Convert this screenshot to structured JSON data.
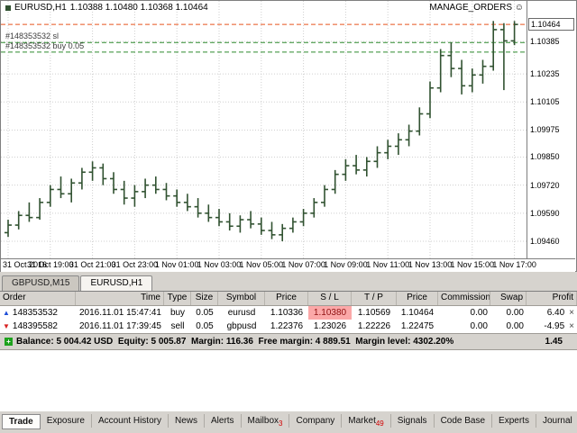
{
  "chart": {
    "title": "EURUSD,H1",
    "ohlc": "1.10388 1.10480 1.10368 1.10464",
    "ea_name": "MANAGE_ORDERS",
    "ea_icon": "☺",
    "annotations": [
      {
        "text": "#148353532 sl",
        "price": 1.1038
      },
      {
        "text": "#148353532 buy 0.05",
        "price": 1.10336
      }
    ]
  },
  "chart_data": {
    "type": "ohlc-bar",
    "symbol": "EURUSD",
    "timeframe": "H1",
    "title": "EURUSD,H1 1.10388 1.10480 1.10368 1.10464",
    "grid": true,
    "bar_color": "#315231",
    "grid_color": "#cfcfcf",
    "current_price": "1.10464",
    "price_view_top": 1.10573,
    "price_view_bottom": 1.09381,
    "y_axis_labels": [
      "1.10385",
      "1.10235",
      "1.10105",
      "1.09975",
      "1.09850",
      "1.09720",
      "1.09590",
      "1.09460"
    ],
    "x_labels": [
      "31 Oct 2016",
      "31 Oct 19:00",
      "31 Oct 21:00",
      "31 Oct 23:00",
      "1 Nov 01:00",
      "1 Nov 03:00",
      "1 Nov 05:00",
      "1 Nov 07:00",
      "1 Nov 09:00",
      "1 Nov 11:00",
      "1 Nov 13:00",
      "1 Nov 15:00",
      "1 Nov 17:00"
    ],
    "label_every": 4,
    "lines": [
      {
        "name": "current-price-line",
        "price": 1.10464,
        "color": "#e8531e",
        "style": "dashed"
      },
      {
        "name": "stop-loss-line",
        "price": 1.1038,
        "color": "#2e8b2e",
        "style": "dashed"
      },
      {
        "name": "open-price-line",
        "price": 1.10336,
        "color": "#2e8b2e",
        "style": "dashed"
      }
    ],
    "bars": [
      [
        1.095,
        1.0956,
        1.0948,
        1.09535
      ],
      [
        1.09535,
        1.096,
        1.09515,
        1.0958
      ],
      [
        1.0958,
        1.0964,
        1.0955,
        1.0957
      ],
      [
        1.0957,
        1.0966,
        1.0956,
        1.0964
      ],
      [
        1.0964,
        1.0972,
        1.0962,
        1.097
      ],
      [
        1.097,
        1.0976,
        1.0966,
        1.0968
      ],
      [
        1.0968,
        1.0975,
        1.0964,
        1.0973
      ],
      [
        1.0973,
        1.098,
        1.097,
        1.0978
      ],
      [
        1.0978,
        1.0983,
        1.0974,
        1.098
      ],
      [
        1.098,
        1.0982,
        1.0972,
        1.0975
      ],
      [
        1.0975,
        1.0978,
        1.0968,
        1.097
      ],
      [
        1.097,
        1.0974,
        1.0963,
        1.0966
      ],
      [
        1.0966,
        1.0972,
        1.0962,
        1.0969
      ],
      [
        1.0969,
        1.0975,
        1.0966,
        1.0972
      ],
      [
        1.0972,
        1.0976,
        1.0968,
        1.097
      ],
      [
        1.097,
        1.0973,
        1.0965,
        1.0967
      ],
      [
        1.0967,
        1.097,
        1.0962,
        1.0964
      ],
      [
        1.0964,
        1.0968,
        1.096,
        1.0962
      ],
      [
        1.0962,
        1.0966,
        1.0957,
        1.0959
      ],
      [
        1.0959,
        1.0963,
        1.0955,
        1.0957
      ],
      [
        1.0957,
        1.0961,
        1.0953,
        1.0955
      ],
      [
        1.0955,
        1.0959,
        1.0951,
        1.0953
      ],
      [
        1.0953,
        1.0958,
        1.095,
        1.0956
      ],
      [
        1.0956,
        1.096,
        1.0952,
        1.0954
      ],
      [
        1.0954,
        1.0957,
        1.0949,
        1.0951
      ],
      [
        1.0951,
        1.0955,
        1.0947,
        1.0949
      ],
      [
        1.0949,
        1.0954,
        1.0946,
        1.0952
      ],
      [
        1.0952,
        1.0957,
        1.095,
        1.0955
      ],
      [
        1.0955,
        1.0961,
        1.0953,
        1.0959
      ],
      [
        1.0959,
        1.0966,
        1.0957,
        1.0964
      ],
      [
        1.0964,
        1.0972,
        1.0962,
        1.097
      ],
      [
        1.097,
        1.0979,
        1.0968,
        1.0977
      ],
      [
        1.0977,
        1.0984,
        1.0974,
        1.0981
      ],
      [
        1.0981,
        1.0986,
        1.0977,
        1.0979
      ],
      [
        1.0979,
        1.0985,
        1.0976,
        1.0983
      ],
      [
        1.0983,
        1.099,
        1.098,
        1.0987
      ],
      [
        1.0987,
        1.0993,
        1.0984,
        1.099
      ],
      [
        1.099,
        1.0996,
        1.0986,
        1.0993
      ],
      [
        1.0993,
        1.1,
        1.099,
        1.0997
      ],
      [
        1.0997,
        1.1008,
        1.0995,
        1.1005
      ],
      [
        1.1005,
        1.102,
        1.1003,
        1.1017
      ],
      [
        1.1017,
        1.1035,
        1.1015,
        1.1032
      ],
      [
        1.1032,
        1.1038,
        1.1022,
        1.1026
      ],
      [
        1.1026,
        1.103,
        1.1014,
        1.1018
      ],
      [
        1.1018,
        1.1026,
        1.1015,
        1.1023
      ],
      [
        1.1023,
        1.103,
        1.1019,
        1.1027
      ],
      [
        1.1027,
        1.1048,
        1.1025,
        1.1044
      ],
      [
        1.1044,
        1.1047,
        1.1016,
        1.10388
      ],
      [
        1.10388,
        1.1048,
        1.10368,
        1.10464
      ]
    ]
  },
  "chart_tabs": [
    {
      "label": "GBPUSD,M15",
      "active": false
    },
    {
      "label": "EURUSD,H1",
      "active": true
    }
  ],
  "terminal": {
    "columns": [
      "Order",
      "Time",
      "Type",
      "Size",
      "Symbol",
      "Price",
      "S / L",
      "T / P",
      "Price",
      "Commission",
      "Swap",
      "Profit"
    ],
    "close_glyph": "×",
    "sl_highlight_color": "#fba8a8",
    "orders": [
      {
        "order": "148353532",
        "time": "2016.11.01 15:47:41",
        "type": "buy",
        "size": "0.05",
        "symbol": "eurusd",
        "price": "1.10336",
        "sl": "1.10380",
        "sl_highlight": true,
        "tp": "1.10569",
        "price2": "1.10464",
        "commission": "0.00",
        "swap": "0.00",
        "profit": "6.40"
      },
      {
        "order": "148395582",
        "time": "2016.11.01 17:39:45",
        "type": "sell",
        "size": "0.05",
        "symbol": "gbpusd",
        "price": "1.22376",
        "sl": "1.23026",
        "sl_highlight": false,
        "tp": "1.22226",
        "price2": "1.22475",
        "commission": "0.00",
        "swap": "0.00",
        "profit": "-4.95"
      }
    ],
    "balance_line": "Balance: 5 004.42 USD  Equity: 5 005.87  Margin: 116.36  Free margin: 4 889.51  Margin level: 4302.20%",
    "total_profit": "1.45",
    "tabs": [
      {
        "label": "Trade",
        "active": true
      },
      {
        "label": "Exposure",
        "active": false
      },
      {
        "label": "Account History",
        "active": false
      },
      {
        "label": "News",
        "active": false
      },
      {
        "label": "Alerts",
        "active": false
      },
      {
        "label": "Mailbox",
        "active": false,
        "badge": "3"
      },
      {
        "label": "Company",
        "active": false
      },
      {
        "label": "Market",
        "active": false,
        "badge": "49"
      },
      {
        "label": "Signals",
        "active": false
      },
      {
        "label": "Code Base",
        "active": false
      },
      {
        "label": "Experts",
        "active": false
      },
      {
        "label": "Journal",
        "active": false
      }
    ]
  }
}
